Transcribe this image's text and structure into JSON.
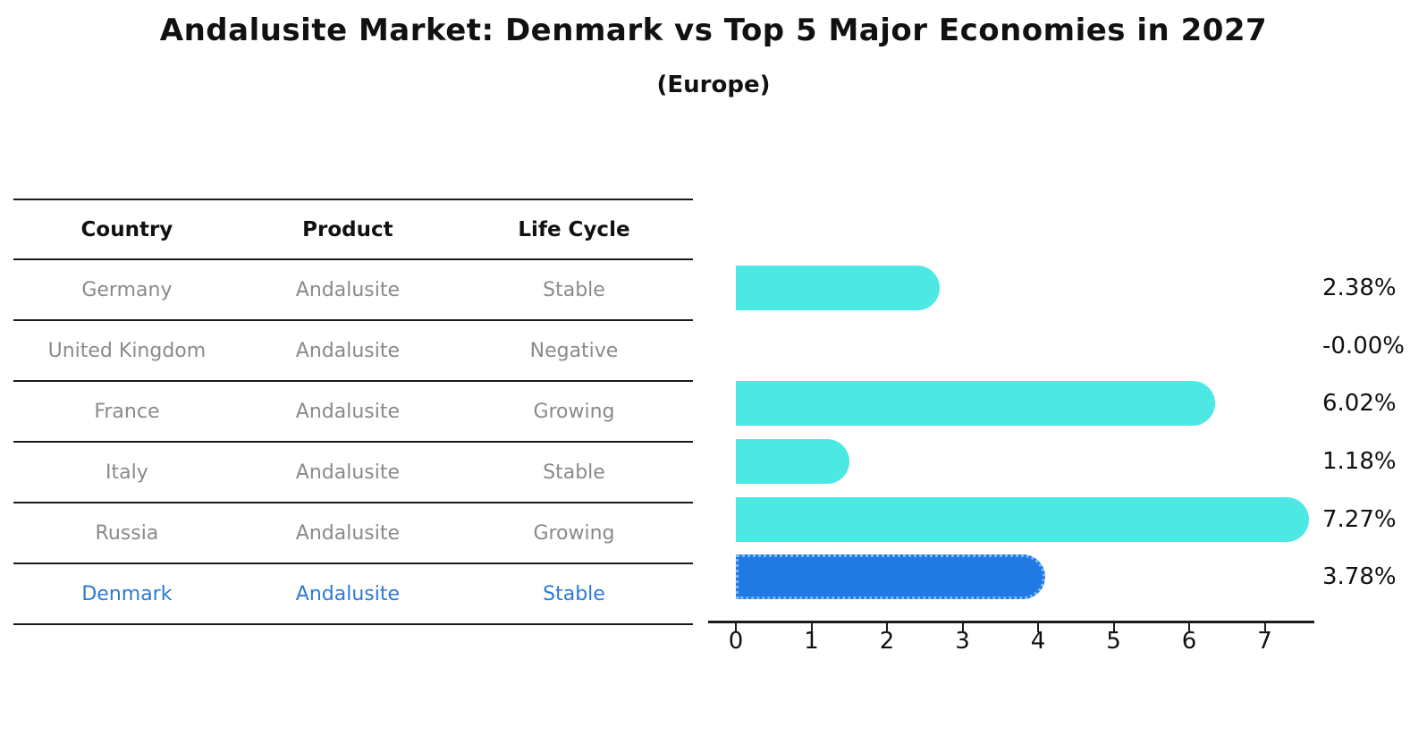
{
  "title": "Andalusite Market: Denmark vs Top 5 Major Economies in 2027",
  "subtitle": "(Europe)",
  "table": {
    "headers": [
      "Country",
      "Product",
      "Life Cycle"
    ],
    "rows": [
      {
        "country": "Germany",
        "product": "Andalusite",
        "life_cycle": "Stable",
        "highlight": false
      },
      {
        "country": "United Kingdom",
        "product": "Andalusite",
        "life_cycle": "Negative",
        "highlight": false
      },
      {
        "country": "France",
        "product": "Andalusite",
        "life_cycle": "Growing",
        "highlight": false
      },
      {
        "country": "Italy",
        "product": "Andalusite",
        "life_cycle": "Stable",
        "highlight": false
      },
      {
        "country": "Russia",
        "product": "Andalusite",
        "life_cycle": "Growing",
        "highlight": true
      }
    ],
    "highlight_row": {
      "country": "Denmark",
      "product": "Andalusite",
      "life_cycle": "Stable",
      "highlight": true
    }
  },
  "chart_data": {
    "type": "bar",
    "orientation": "horizontal",
    "categories": [
      "Germany",
      "United Kingdom",
      "France",
      "Italy",
      "Russia",
      "Denmark"
    ],
    "values": [
      2.38,
      -0.0,
      6.02,
      1.18,
      7.27,
      3.78
    ],
    "value_labels": [
      "2.38%",
      "-0.00%",
      "6.02%",
      "1.18%",
      "7.27%",
      "3.78%"
    ],
    "highlight_index": 5,
    "xticks": [
      "0",
      "1",
      "2",
      "3",
      "4",
      "5",
      "6",
      "7"
    ],
    "xlim": [
      0,
      7.65
    ],
    "grid": false,
    "legend": "none",
    "bar_color": "#4BE8E4",
    "highlight_bar_color": "#217AE4",
    "highlight_bar_edge_color": "#7ab9f5",
    "highlight_text_color": "#2b7bd4",
    "table_text_color": "#8a8a8a",
    "axis_color": "#1a1a1a",
    "text_color": "#111111"
  }
}
